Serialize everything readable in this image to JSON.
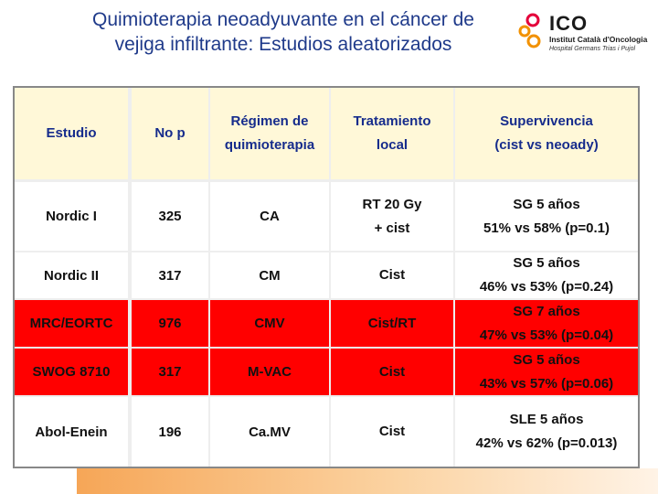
{
  "title": {
    "line1": "Quimioterapia neoadyuvante en el cáncer de",
    "line2": "vejiga infiltrante: Estudios aleatorizados"
  },
  "logo": {
    "name": "ICO",
    "line1": "Institut Català d'Oncologia",
    "line2": "Hospital Germans Trias i Pujol",
    "colors": [
      "#e4003a",
      "#f29100"
    ]
  },
  "table": {
    "headers": [
      {
        "l1": "Estudio",
        "l2": ""
      },
      {
        "l1": "No  p",
        "l2": ""
      },
      {
        "l1": "Régimen de",
        "l2": "quimioterapia"
      },
      {
        "l1": "Tratamiento",
        "l2": "local"
      },
      {
        "l1": "Supervivencia",
        "l2": "(cist vs neoady)"
      }
    ],
    "rows": [
      {
        "estudio": "Nordic I",
        "n": "325",
        "regimen": "CA",
        "tratamiento": "RT 20 Gy",
        "tratamiento2": "+ cist",
        "metric": "SG 5 años",
        "result": "51% vs 58% (p=0.1)",
        "highlight": false
      },
      {
        "estudio": "Nordic II",
        "n": "317",
        "regimen": "CM",
        "tratamiento": "Cist",
        "tratamiento2": "",
        "metric": "SG 5 años",
        "result": "46% vs 53% (p=0.24)",
        "highlight": false
      },
      {
        "estudio": "MRC/EORTC",
        "n": "976",
        "regimen": "CMV",
        "tratamiento": "Cist/RT",
        "tratamiento2": "",
        "metric": "SG 7 años",
        "result": "47% vs 53% (p=0.04)",
        "highlight": true
      },
      {
        "estudio": "SWOG 8710",
        "n": "317",
        "regimen": "M-VAC",
        "tratamiento": "Cist",
        "tratamiento2": "",
        "metric": "SG 5 años",
        "result": "43% vs 57% (p=0.06)",
        "highlight": true
      },
      {
        "estudio": "Abol-Enein",
        "n": "196",
        "regimen": "Ca.MV",
        "tratamiento": "Cist",
        "tratamiento2": "",
        "metric": "SLE 5 años",
        "result": "42% vs 62% (p=0.013)",
        "highlight": false
      }
    ],
    "highlight_color": "#ff0000"
  }
}
